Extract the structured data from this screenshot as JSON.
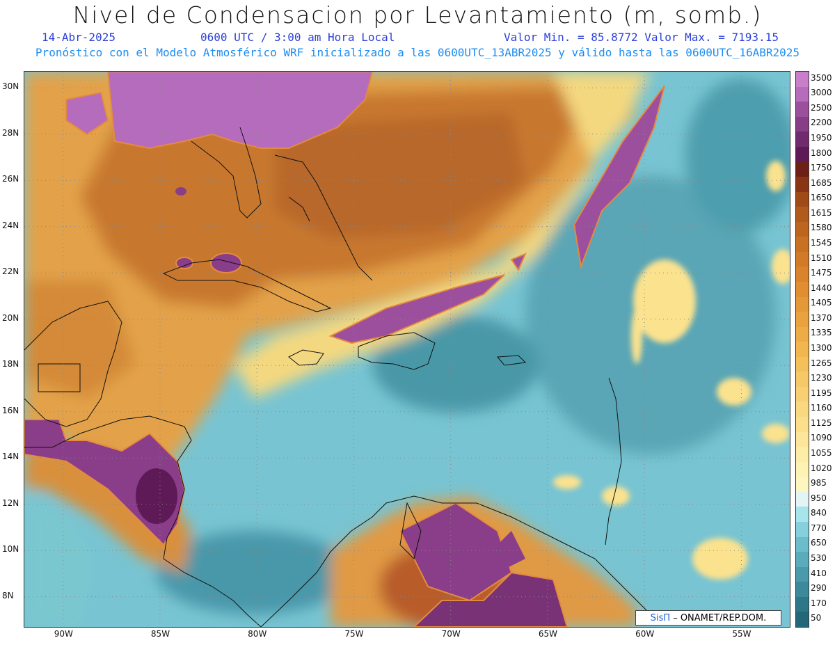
{
  "header": {
    "title": "Nivel de Condensacion por Levantamiento (m, somb.)",
    "date": "14-Abr-2025",
    "time": "0600 UTC / 3:00 am Hora Local",
    "minmax": "Valor Min. = 85.8772  Valor Max. = 7193.15",
    "info": "Pronóstico con el Modelo Atmosférico WRF inicializado a las 0600UTC_13ABR2025 y válido hasta las  0600UTC_16ABR2025"
  },
  "map": {
    "lon_range": [
      -92.0,
      -52.5
    ],
    "lat_range": [
      6.7,
      30.7
    ],
    "lat_ticks": [
      {
        "value": 30,
        "label": "30N"
      },
      {
        "value": 28,
        "label": "28N"
      },
      {
        "value": 26,
        "label": "26N"
      },
      {
        "value": 24,
        "label": "24N"
      },
      {
        "value": 22,
        "label": "22N"
      },
      {
        "value": 20,
        "label": "20N"
      },
      {
        "value": 18,
        "label": "18N"
      },
      {
        "value": 16,
        "label": "16N"
      },
      {
        "value": 14,
        "label": "14N"
      },
      {
        "value": 12,
        "label": "12N"
      },
      {
        "value": 10,
        "label": "10N"
      },
      {
        "value": 8,
        "label": "8N"
      }
    ],
    "lon_ticks": [
      {
        "value": -90,
        "label": "90W"
      },
      {
        "value": -85,
        "label": "85W"
      },
      {
        "value": -80,
        "label": "80W"
      },
      {
        "value": -75,
        "label": "75W"
      },
      {
        "value": -70,
        "label": "70W"
      },
      {
        "value": -65,
        "label": "65W"
      },
      {
        "value": -60,
        "label": "60W"
      },
      {
        "value": -55,
        "label": "55W"
      }
    ]
  },
  "colorbar": {
    "levels": [
      "3500",
      "3000",
      "2500",
      "2200",
      "1950",
      "1800",
      "1750",
      "1685",
      "1650",
      "1615",
      "1580",
      "1545",
      "1510",
      "1475",
      "1440",
      "1405",
      "1370",
      "1335",
      "1300",
      "1265",
      "1230",
      "1195",
      "1160",
      "1125",
      "1090",
      "1055",
      "1020",
      "985",
      "950",
      "840",
      "770",
      "650",
      "530",
      "410",
      "290",
      "170",
      "50"
    ],
    "colors": [
      "#c97ec9",
      "#b66cbd",
      "#9c4f9c",
      "#883e86",
      "#722a6e",
      "#5e1a56",
      "#6e2018",
      "#8a3416",
      "#a04a18",
      "#b05a1c",
      "#bd651f",
      "#c87123",
      "#d27a27",
      "#d9842c",
      "#e08e31",
      "#e59837",
      "#eaa23e",
      "#eeac47",
      "#f1b650",
      "#f4c05c",
      "#f6c868",
      "#f8d073",
      "#fad87f",
      "#fcdf8b",
      "#fde699",
      "#feeda7",
      "#fef3b4",
      "#fdf6c0",
      "#e4f4f4",
      "#a8e4ec",
      "#86cfdc",
      "#6cbccb",
      "#5aabbb",
      "#4a9aab",
      "#3c899b",
      "#2e7789",
      "#246878"
    ]
  },
  "credit": {
    "logo": "SisΠ",
    "text": "– ONAMET/REP.DOM."
  }
}
